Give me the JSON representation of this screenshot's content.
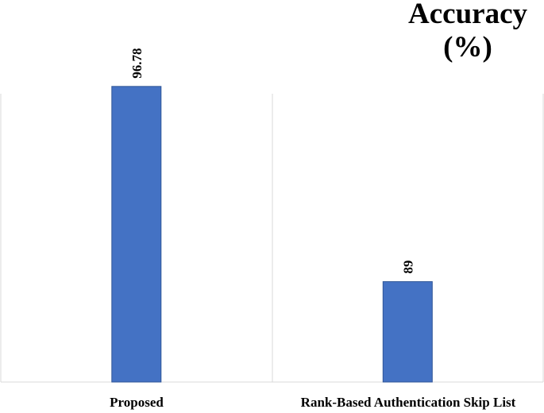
{
  "chart_data": {
    "type": "bar",
    "title_lines": [
      "Accuracy",
      "(%)"
    ],
    "categories": [
      "Proposed",
      "Rank-Based Authentication Skip List"
    ],
    "values": [
      96.78,
      89
    ],
    "data_labels": [
      "96.78",
      "89"
    ],
    "ylim": [
      85,
      100
    ],
    "grid": false,
    "bar_color": "#4472C4",
    "bar_border_color": "#2F5597",
    "frame_color": "#D9D9D9"
  }
}
